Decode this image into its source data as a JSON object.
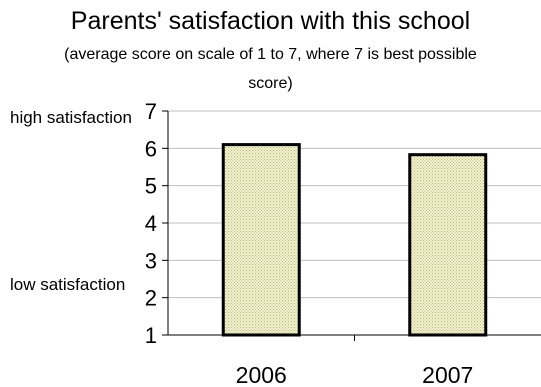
{
  "chart_data": {
    "type": "bar",
    "title": "Parents' satisfaction with this school",
    "subtitle": "(average score on scale of 1 to 7, where 7 is best possible score)",
    "categories": [
      "2006",
      "2007"
    ],
    "values": [
      6.1,
      5.83
    ],
    "ylim": [
      1,
      7
    ],
    "yticks": [
      "1",
      "2",
      "3",
      "4",
      "5",
      "6",
      "7"
    ],
    "xlabel": "",
    "ylabel": "",
    "annotations": {
      "high": "high satisfaction",
      "low": "low satisfaction"
    },
    "grid": true,
    "bar_fill": "#e8e8b4",
    "bar_stroke": "#000000",
    "gridline_color": "#c0c0c0"
  }
}
